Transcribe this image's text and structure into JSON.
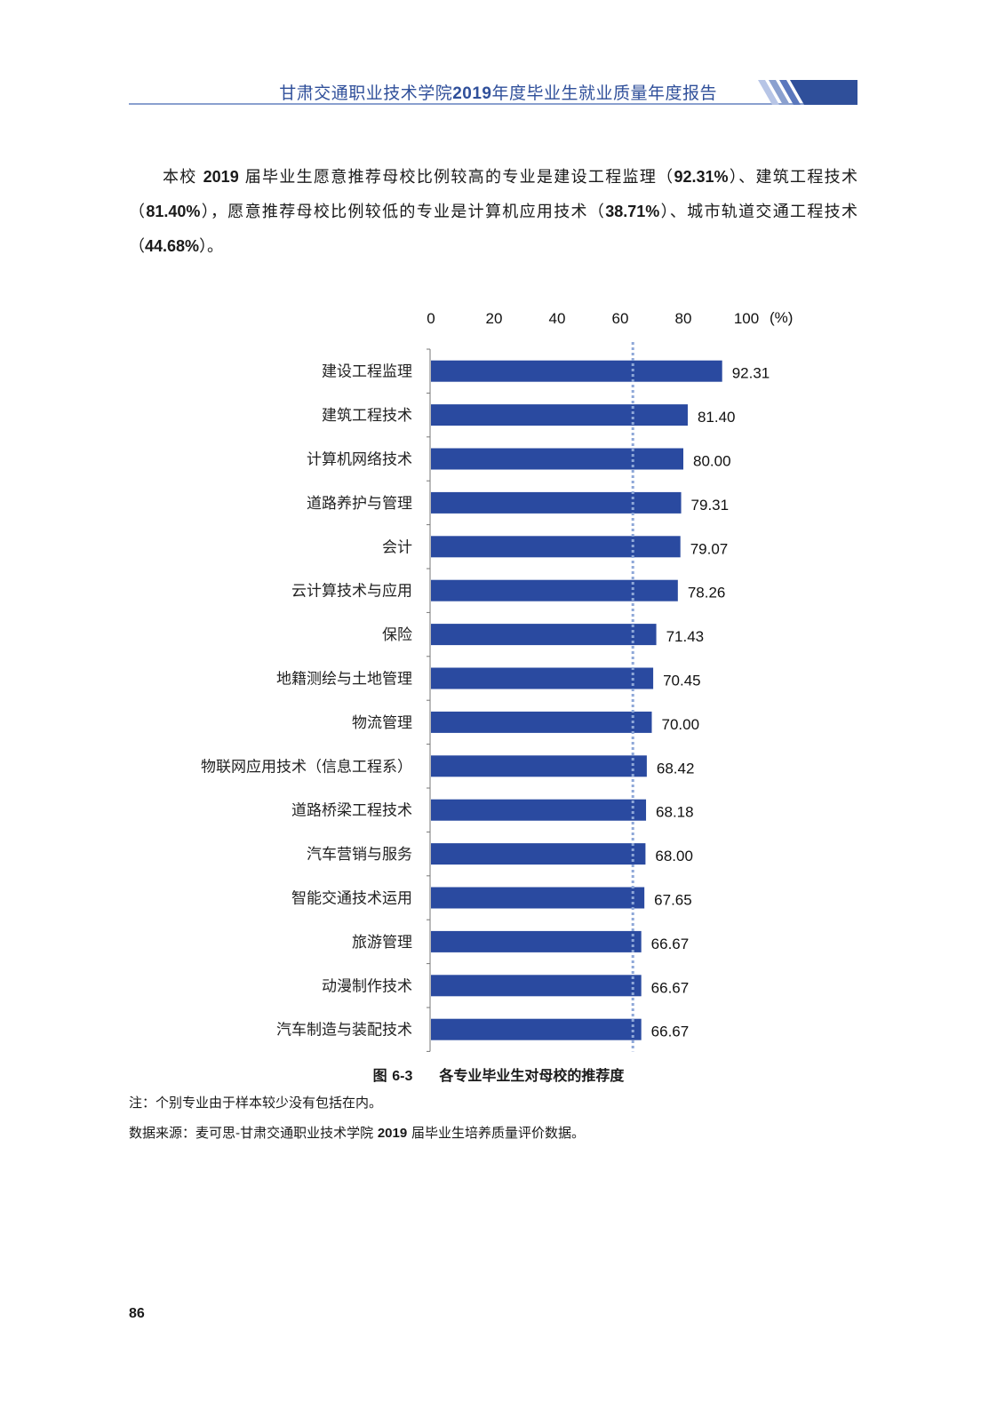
{
  "header": {
    "title_prefix": "甘肃交通职业技术学院",
    "title_year": "2019",
    "title_suffix": "年度毕业生就业质量年度报告",
    "accent_color": "#2f4f9a"
  },
  "paragraph": {
    "t1": "本校 ",
    "b1": "2019",
    "t2": " 届毕业生愿意推荐母校比例较高的专业是建设工程监理（",
    "b2": "92.31%",
    "t3": "）、建筑工程技术（",
    "b3": "81.40%",
    "t4": "），愿意推荐母校比例较低的专业是计算机应用技术（",
    "b4": "38.71%",
    "t5": "）、城市轨道交通工程技术（",
    "b5": "44.68%",
    "t6": "）。"
  },
  "chart_data": {
    "type": "bar",
    "orientation": "horizontal",
    "categories": [
      "建设工程监理",
      "建筑工程技术",
      "计算机网络技术",
      "道路养护与管理",
      "会计",
      "云计算技术与应用",
      "保险",
      "地籍测绘与土地管理",
      "物流管理",
      "物联网应用技术（信息工程系）",
      "道路桥梁工程技术",
      "汽车营销与服务",
      "智能交通技术运用",
      "旅游管理",
      "动漫制作技术",
      "汽车制造与装配技术"
    ],
    "values": [
      92.31,
      81.4,
      80.0,
      79.31,
      79.07,
      78.26,
      71.43,
      70.45,
      70.0,
      68.42,
      68.18,
      68.0,
      67.65,
      66.67,
      66.67,
      66.67
    ],
    "value_labels": [
      "92.31",
      "81.40",
      "80.00",
      "79.31",
      "79.07",
      "78.26",
      "71.43",
      "70.45",
      "70.00",
      "68.42",
      "68.18",
      "68.00",
      "67.65",
      "66.67",
      "66.67",
      "66.67"
    ],
    "xlim": [
      0,
      100
    ],
    "xticks": [
      0,
      20,
      40,
      60,
      80,
      100
    ],
    "xtick_labels": [
      "0",
      "20",
      "40",
      "60",
      "80",
      "100"
    ],
    "unit": "(%)",
    "reference_line": 64,
    "bar_color": "#2a4aa0",
    "reference_color": "#8fa8d8"
  },
  "caption": {
    "fig_prefix": "图 ",
    "fig_num": "6-3",
    "title": "各专业毕业生对母校的推荐度"
  },
  "notes": {
    "note1": "注：个别专业由于样本较少没有包括在内。",
    "note2_a": "数据来源：麦可思-甘肃交通职业技术学院 ",
    "note2_b": "2019",
    "note2_c": " 届毕业生培养质量评价数据。"
  },
  "page_number": "86"
}
